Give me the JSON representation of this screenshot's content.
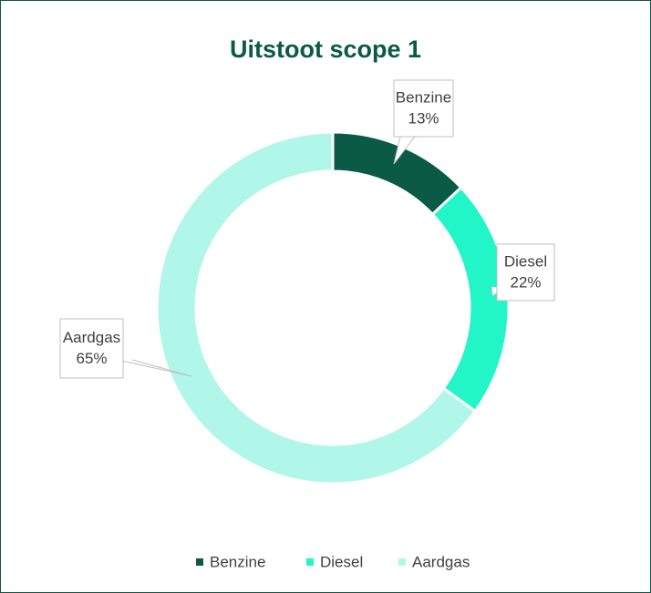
{
  "chart_data": {
    "type": "pie",
    "title": "Uitstoot scope 1",
    "categories": [
      "Benzine",
      "Diesel",
      "Aardgas"
    ],
    "values": [
      13,
      22,
      65
    ],
    "value_labels": [
      "13%",
      "22%",
      "65%"
    ],
    "colors": [
      "#0b5a45",
      "#22f5c8",
      "#b0f7ea"
    ],
    "legend": "bottom"
  }
}
